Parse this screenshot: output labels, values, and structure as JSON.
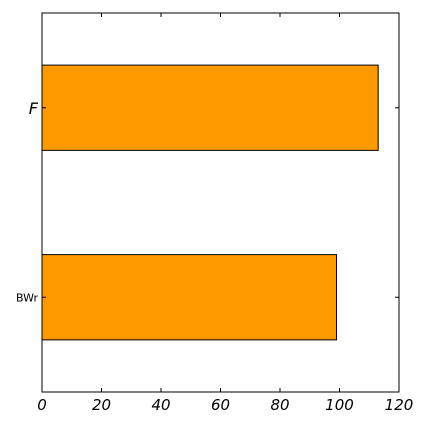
{
  "chart_data": {
    "type": "bar",
    "orientation": "horizontal",
    "categories": [
      "F",
      "BWr"
    ],
    "values": [
      113,
      99
    ],
    "bar_color": "#ff9900",
    "edge_color": "#000000",
    "xlim": [
      0,
      120
    ],
    "xticks": [
      0,
      20,
      40,
      60,
      80,
      100,
      120
    ],
    "xtick_labels": [
      "0",
      "20",
      "40",
      "60",
      "80",
      "100",
      "120"
    ],
    "grid": false,
    "title": "",
    "xlabel": "",
    "ylabel": ""
  }
}
